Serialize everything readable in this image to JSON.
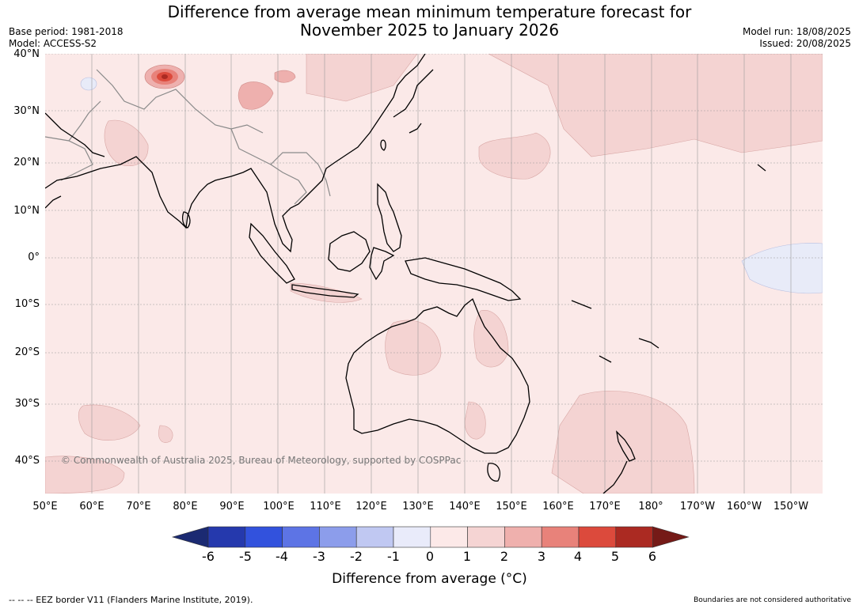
{
  "title": {
    "line1": "Difference from average mean minimum temperature forecast for",
    "line2": "November 2025 to January 2026"
  },
  "meta": {
    "base_period": "Base period: 1981-2018",
    "model": "Model: ACCESS-S2",
    "model_run": "Model run: 18/08/2025",
    "issued": "Issued: 20/08/2025"
  },
  "map": {
    "lat_labels": [
      "40°N",
      "30°N",
      "20°N",
      "10°N",
      "0°",
      "10°S",
      "20°S",
      "30°S",
      "40°S"
    ],
    "lon_labels": [
      "50°E",
      "60°E",
      "70°E",
      "80°E",
      "90°E",
      "100°E",
      "110°E",
      "120°E",
      "130°E",
      "140°E",
      "150°E",
      "160°E",
      "170°E",
      "180°",
      "170°W",
      "160°W",
      "150°W"
    ],
    "copyright": "© Commonwealth of Australia 2025, Bureau of Meteorology, supported by COSPPac",
    "colors": {
      "background_anomaly": "#fbe9e8",
      "warm_patch": "#f4d3d2",
      "warmer_patch": "#eeb0ae",
      "hot_spot": "#d94b3e",
      "cool_patch": "#e8ebf8",
      "coast": "#000000",
      "border": "#8a8a8a"
    }
  },
  "colorbar": {
    "label": "Difference from average (°C)",
    "ticks": [
      "-6",
      "-5",
      "-4",
      "-3",
      "-2",
      "-1",
      "0",
      "1",
      "2",
      "3",
      "4",
      "5",
      "6"
    ],
    "colors": [
      "#1b2a72",
      "#2539ad",
      "#3252dd",
      "#5d74e5",
      "#8c9deb",
      "#c0c8f2",
      "#e9ebfa",
      "#fce9e8",
      "#f5d4d3",
      "#efb0ad",
      "#e8827a",
      "#dc4a3c",
      "#ab2a22",
      "#751a17"
    ]
  },
  "footer": {
    "left": "--  --  -- EEZ border V11 (Flanders Marine Institute, 2019).",
    "right": "Boundaries are not considered authoritative"
  }
}
